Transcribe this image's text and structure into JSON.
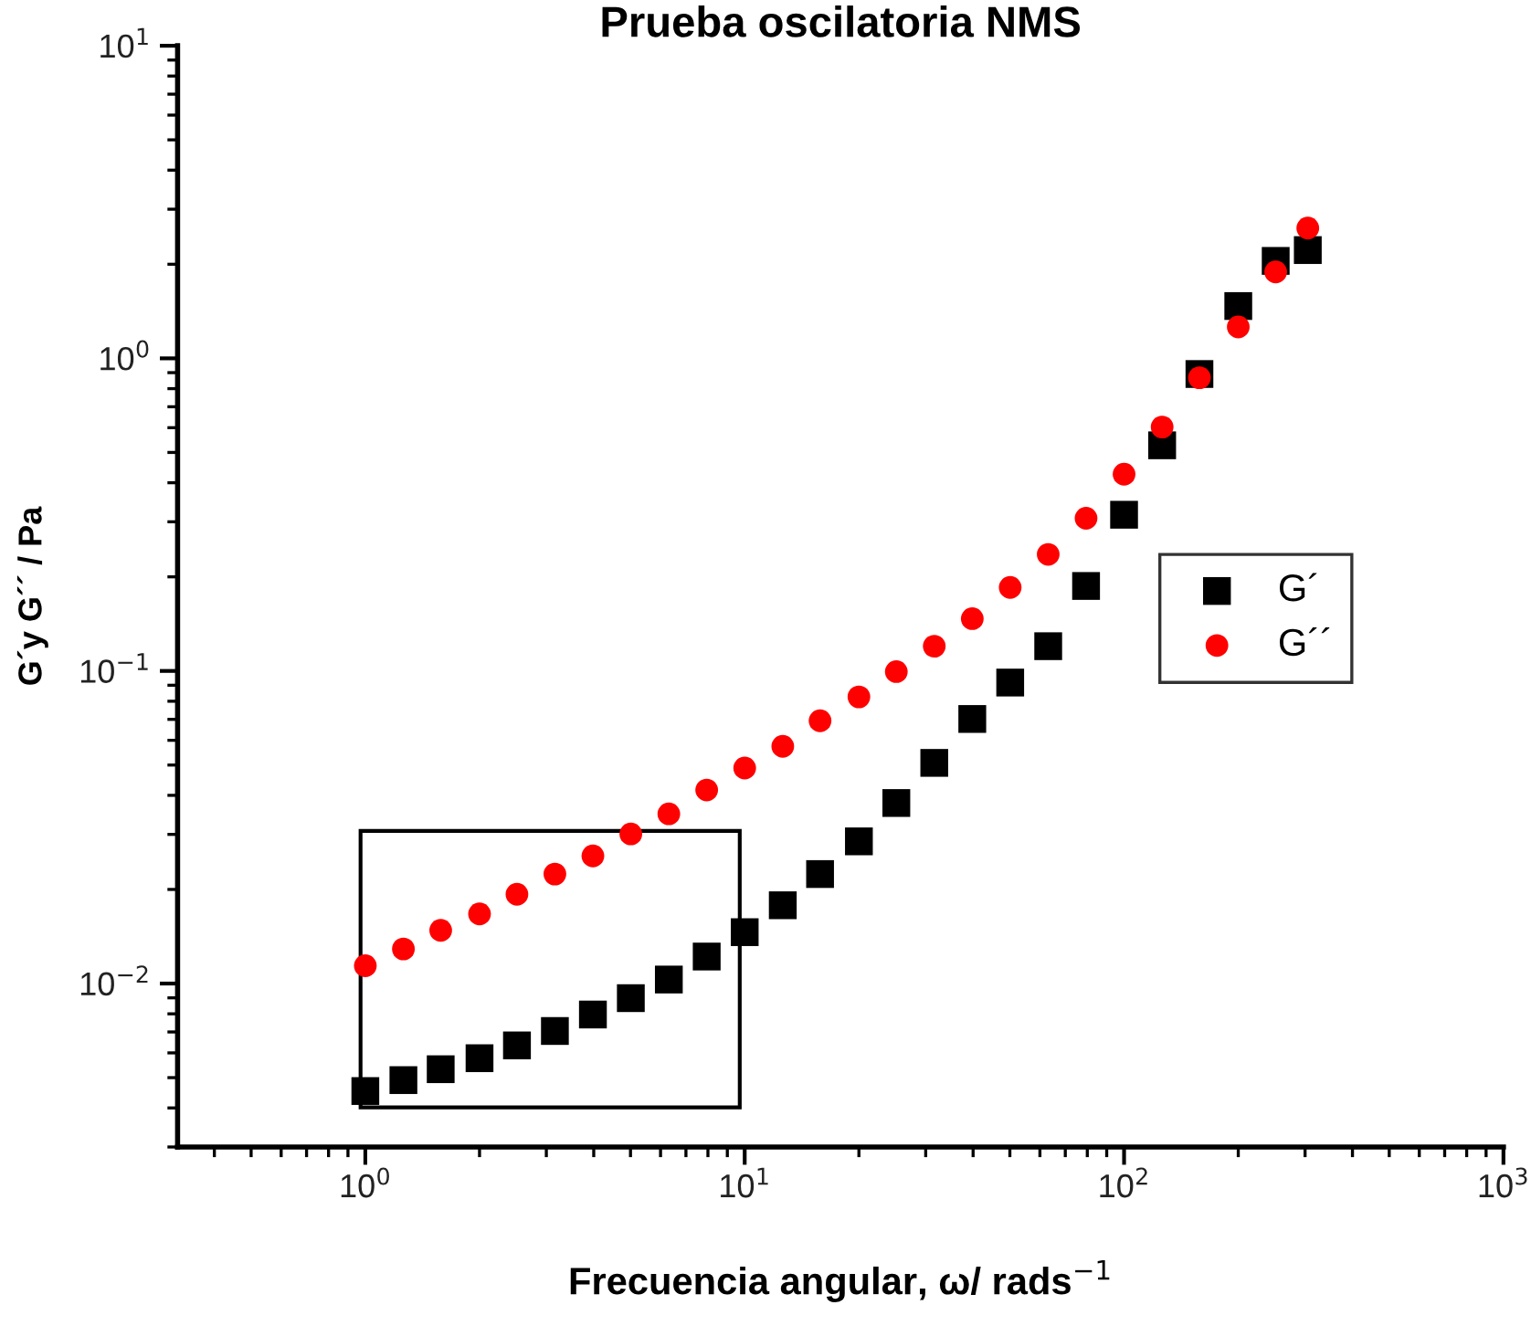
{
  "chart_data": {
    "type": "scatter",
    "title": "Prueba oscilatoria NMS",
    "xlabel": "Frecuencia angular, ω/ rads$^{−1}$",
    "ylabel": "G´y G´´ / Pa",
    "log": "xy",
    "xlim": [
      0.32,
      1000
    ],
    "ylim": [
      0.003,
      10
    ],
    "xticks": [
      {
        "value": 1,
        "label": "10$^{0}$"
      },
      {
        "value": 10,
        "label": "10$^{1}$"
      },
      {
        "value": 100,
        "label": "10$^{2}$"
      },
      {
        "value": 1000,
        "label": "10$^{3}$"
      }
    ],
    "yticks": [
      {
        "value": 0.01,
        "label": "10$^{−2}$"
      },
      {
        "value": 0.1,
        "label": "10$^{−1}$"
      },
      {
        "value": 1,
        "label": "10$^{0}$"
      },
      {
        "value": 10,
        "label": "10$^{1}$"
      }
    ],
    "grid": false,
    "legend": "center right",
    "x": [
      1,
      1.26,
      1.58,
      2,
      2.51,
      3.16,
      3.98,
      5.01,
      6.31,
      7.94,
      10,
      12.6,
      15.8,
      20,
      25.1,
      31.6,
      39.8,
      50.1,
      63.1,
      79.4,
      100,
      126,
      158,
      200,
      251,
      305
    ],
    "series": [
      {
        "name": "G´",
        "color": "#000000",
        "marker": "square",
        "values": [
          0.00453,
          0.00491,
          0.00532,
          0.00577,
          0.00634,
          0.00705,
          0.00796,
          0.00898,
          0.0103,
          0.0122,
          0.0146,
          0.0178,
          0.0224,
          0.0285,
          0.0378,
          0.0508,
          0.0702,
          0.0918,
          0.12,
          0.187,
          0.316,
          0.527,
          0.891,
          1.47,
          2.05,
          2.22
        ]
      },
      {
        "name": "G´´",
        "color": "#ff0000",
        "marker": "circle",
        "values": [
          0.0114,
          0.0129,
          0.0148,
          0.0167,
          0.0193,
          0.0224,
          0.0256,
          0.0301,
          0.0349,
          0.0416,
          0.0489,
          0.0574,
          0.0693,
          0.0826,
          0.0995,
          0.12,
          0.147,
          0.185,
          0.236,
          0.308,
          0.426,
          0.603,
          0.867,
          1.26,
          1.89,
          2.61
        ]
      }
    ]
  }
}
